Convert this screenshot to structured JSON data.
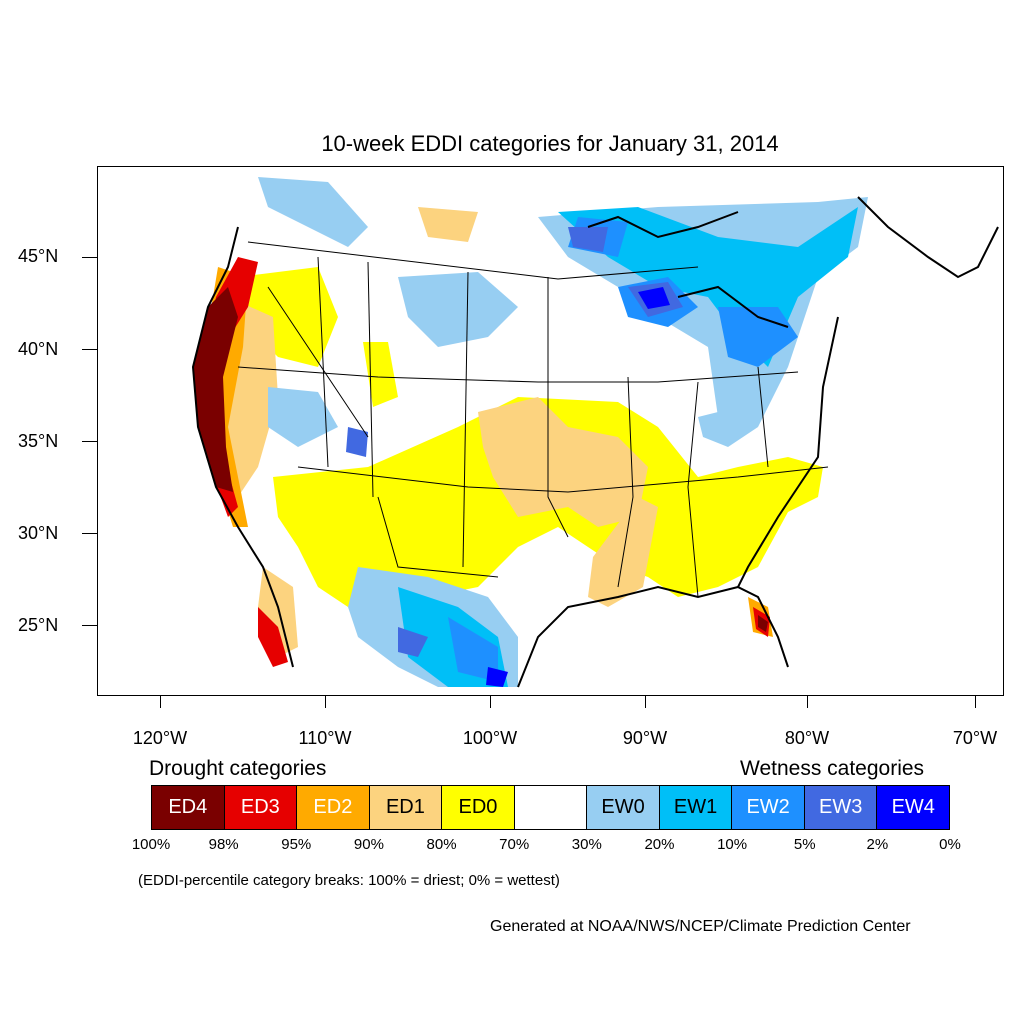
{
  "title": "10-week EDDI categories for January 31, 2014",
  "lat_labels": [
    "45°N",
    "40°N",
    "35°N",
    "30°N",
    "25°N"
  ],
  "lon_labels": [
    "120°W",
    "110°W",
    "100°W",
    "90°W",
    "80°W",
    "70°W"
  ],
  "legend": {
    "drought_heading": "Drought categories",
    "wetness_heading": "Wetness categories",
    "categories": [
      {
        "label": "ED4",
        "color": "#7a0000",
        "text_color": "#ffffff"
      },
      {
        "label": "ED3",
        "color": "#e60000",
        "text_color": "#ffffff"
      },
      {
        "label": "ED2",
        "color": "#ffaa00",
        "text_color": "#ffffff"
      },
      {
        "label": "ED1",
        "color": "#fcd37f",
        "text_color": "#000000"
      },
      {
        "label": "ED0",
        "color": "#ffff00",
        "text_color": "#000000"
      },
      {
        "label": "",
        "color": "#ffffff",
        "text_color": "#000000"
      },
      {
        "label": "EW0",
        "color": "#97cef2",
        "text_color": "#000000"
      },
      {
        "label": "EW1",
        "color": "#00bff7",
        "text_color": "#000000"
      },
      {
        "label": "EW2",
        "color": "#1e90ff",
        "text_color": "#ffffff"
      },
      {
        "label": "EW3",
        "color": "#4169e1",
        "text_color": "#ffffff"
      },
      {
        "label": "EW4",
        "color": "#0000ff",
        "text_color": "#ffffff"
      }
    ],
    "percentiles": [
      "100%",
      "98%",
      "95%",
      "90%",
      "80%",
      "70%",
      "30%",
      "20%",
      "10%",
      "5%",
      "2%",
      "0%"
    ]
  },
  "note": "(EDDI-percentile category breaks: 100% = driest; 0% = wettest)",
  "credit": "Generated at NOAA/NWS/NCEP/Climate Prediction Center"
}
